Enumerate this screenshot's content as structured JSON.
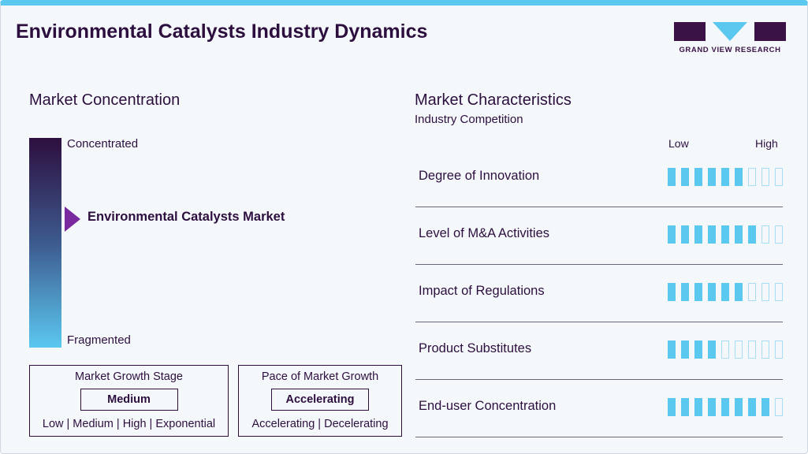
{
  "title": "Environmental Catalysts Industry Dynamics",
  "logo": {
    "text": "GRAND VIEW RESEARCH"
  },
  "colors": {
    "brand": "#2d0f3f",
    "accent": "#5bc8f0",
    "marker": "#7a2a9e"
  },
  "concentration": {
    "heading": "Market Concentration",
    "top": "Concentrated",
    "bottom": "Fragmented",
    "marker_label": "Environmental Catalysts Market"
  },
  "growth_stage": {
    "title": "Market Growth Stage",
    "value": "Medium",
    "options": "Low | Medium | High | Exponential"
  },
  "pace": {
    "title": "Pace of Market Growth",
    "value": "Accelerating",
    "options": "Accelerating | Decelerating"
  },
  "characteristics": {
    "heading": "Market Characteristics",
    "subheading": "Industry Competition",
    "low": "Low",
    "high": "High",
    "max_level": 9,
    "items": [
      {
        "label": "Degree of Innovation",
        "level": 6
      },
      {
        "label": "Level of M&A Activities",
        "level": 7
      },
      {
        "label": "Impact of Regulations",
        "level": 6
      },
      {
        "label": "Product Substitutes",
        "level": 4
      },
      {
        "label": "End-user Concentration",
        "level": 8
      }
    ]
  }
}
